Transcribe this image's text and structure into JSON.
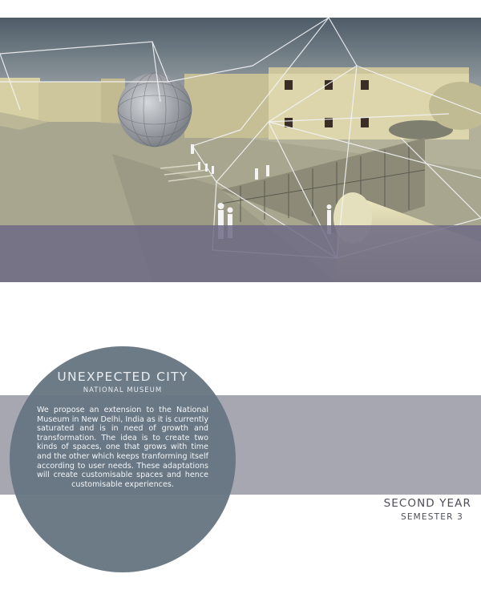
{
  "project": {
    "title": "UNEXPECTED CITY",
    "subtitle": "NATIONAL MUSEUM",
    "description": "We propose an extension to the National Museum in New Delhi, India as it is currently saturated and is in need of growth and transformation. The idea is to create two kinds of spaces, one that grows with time and the other which keeps tranforming itself according to user needs. These adaptations will create customisable spaces and hence customisable experiences."
  },
  "course": {
    "year": "SECOND YEAR",
    "semester": "SEMESTER 3"
  },
  "colors": {
    "sky": "#7d8c96",
    "ground": "#b5b39a",
    "building": "#ddd6ac",
    "overlay_band": "#6e6a85",
    "gray_band": "#a7a7b1",
    "circle": "#687783"
  }
}
